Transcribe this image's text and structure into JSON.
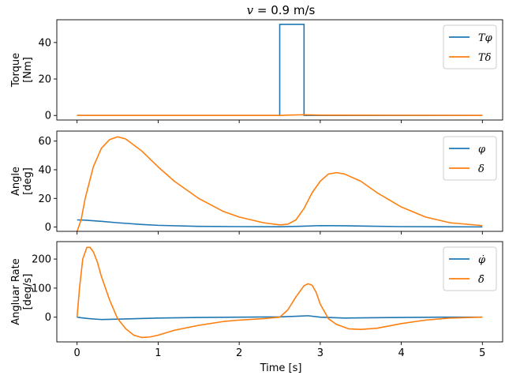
{
  "chart_data": {
    "type": "line",
    "title_var": "v",
    "title_rest": " = 0.9 m/s",
    "xlabel": "Time [s]",
    "xlim": [
      -0.25,
      5.25
    ],
    "x_ticks": [
      0,
      1,
      2,
      3,
      4,
      5
    ],
    "x_tick_labels": [
      "0",
      "1",
      "2",
      "3",
      "4",
      "5"
    ],
    "grid": false,
    "legend_position": "top-right",
    "colors": {
      "blue": "#1f77b4",
      "orange": "#ff7f0e"
    },
    "panels": [
      {
        "id": "torque",
        "ylabel_lines": [
          "Torque",
          "[Nm]"
        ],
        "ylim": [
          -2.5,
          52.5
        ],
        "y_ticks": [
          0,
          20,
          40
        ],
        "y_tick_labels": [
          "0",
          "20",
          "40"
        ],
        "series": [
          {
            "name": "Tφ",
            "color": "#1f77b4",
            "x": [
              0,
              2.5,
              2.5,
              2.8,
              2.8,
              5.0
            ],
            "y": [
              0,
              0,
              50,
              50,
              0,
              0
            ]
          },
          {
            "name": "Tδ",
            "color": "#ff7f0e",
            "x": [
              0,
              2.5,
              2.6,
              2.8,
              3.0,
              5.0
            ],
            "y": [
              0,
              0,
              0.2,
              0.4,
              0.2,
              0
            ]
          }
        ]
      },
      {
        "id": "angle",
        "ylabel_lines": [
          "Angle",
          "[deg]"
        ],
        "ylim": [
          -3,
          67
        ],
        "y_ticks": [
          0,
          20,
          40,
          60
        ],
        "y_tick_labels": [
          "0",
          "20",
          "40",
          "60"
        ],
        "series": [
          {
            "name": "φ",
            "color": "#1f77b4",
            "x": [
              0,
              0.1,
              0.3,
              0.5,
              0.8,
              1.0,
              1.5,
              2.0,
              2.5,
              2.8,
              3.0,
              3.3,
              3.6,
              4.0,
              4.5,
              5.0
            ],
            "y": [
              5,
              4.8,
              4,
              3,
              1.8,
              1.2,
              0.5,
              0.3,
              0.2,
              0.6,
              1.0,
              0.9,
              0.6,
              0.3,
              0.2,
              0.1
            ]
          },
          {
            "name": "δ",
            "color": "#ff7f0e",
            "x": [
              0,
              0.05,
              0.1,
              0.2,
              0.3,
              0.4,
              0.5,
              0.6,
              0.8,
              1.0,
              1.2,
              1.5,
              1.8,
              2.0,
              2.3,
              2.5,
              2.6,
              2.7,
              2.8,
              2.9,
              3.0,
              3.1,
              3.2,
              3.3,
              3.5,
              3.7,
              4.0,
              4.3,
              4.6,
              5.0
            ],
            "y": [
              -3,
              5,
              20,
              42,
              55,
              61,
              63,
              61.5,
              53,
              42,
              32,
              20,
              11,
              7,
              3,
              1.5,
              2,
              5,
              13,
              24,
              32,
              37,
              38,
              37,
              32,
              24,
              14,
              7,
              3,
              1
            ]
          }
        ]
      },
      {
        "id": "rate",
        "ylabel_lines": [
          "Angluar Rate",
          "[deg/s]"
        ],
        "ylim": [
          -85,
          260
        ],
        "y_ticks": [
          0,
          100,
          200
        ],
        "y_tick_labels": [
          "0",
          "100",
          "200"
        ],
        "series": [
          {
            "name": "φ̇",
            "color": "#1f77b4",
            "x": [
              0,
              0.05,
              0.15,
              0.3,
              0.6,
              1.0,
              1.5,
              2.0,
              2.5,
              2.7,
              2.85,
              3.0,
              3.3,
              3.6,
              4.0,
              4.5,
              5.0
            ],
            "y": [
              0,
              -2,
              -5,
              -8,
              -6,
              -3,
              -1,
              0,
              1,
              3,
              5,
              0,
              -3,
              -2,
              -1,
              0,
              0
            ]
          },
          {
            "name": "δ̇",
            "color": "#ff7f0e",
            "x": [
              0,
              0.03,
              0.07,
              0.12,
              0.16,
              0.2,
              0.25,
              0.3,
              0.4,
              0.5,
              0.6,
              0.7,
              0.8,
              0.9,
              1.0,
              1.2,
              1.5,
              1.8,
              2.0,
              2.3,
              2.5,
              2.6,
              2.7,
              2.8,
              2.85,
              2.9,
              2.95,
              3.0,
              3.1,
              3.2,
              3.35,
              3.5,
              3.7,
              4.0,
              4.3,
              4.6,
              5.0
            ],
            "y": [
              0,
              100,
              200,
              240,
              240,
              225,
              190,
              140,
              60,
              -5,
              -40,
              -62,
              -70,
              -68,
              -62,
              -45,
              -28,
              -15,
              -10,
              -5,
              0,
              25,
              70,
              108,
              115,
              110,
              85,
              45,
              -5,
              -25,
              -40,
              -42,
              -38,
              -22,
              -10,
              -3,
              0
            ]
          }
        ]
      }
    ]
  }
}
